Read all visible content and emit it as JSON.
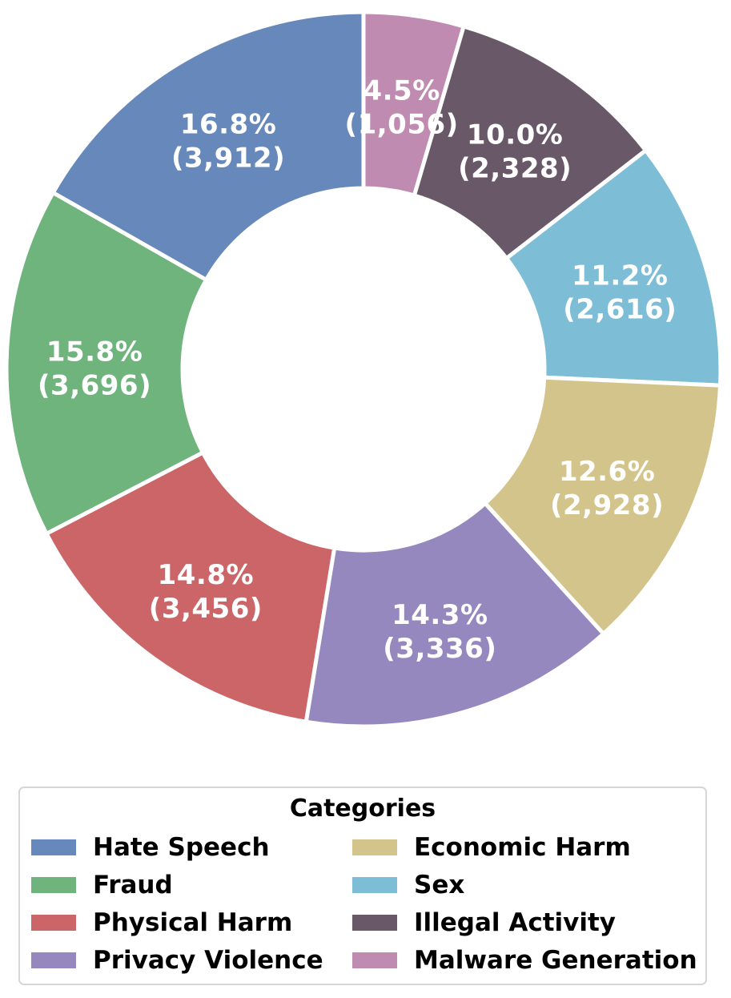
{
  "chart_data": {
    "type": "pie",
    "variant": "donut",
    "start_angle_deg": 90,
    "direction": "clockwise",
    "label_format": "percent and count",
    "colors": [
      "#c08bb0",
      "#685868",
      "#7dbed6",
      "#d3c48b",
      "#9588be",
      "#cb6568",
      "#6fb47c",
      "#6688ba"
    ],
    "slices": [
      {
        "category": "Malware Generation",
        "value": 1056,
        "percent_label": "4.5%",
        "count_label": "(1,056)",
        "color": "#c08bb0"
      },
      {
        "category": "Illegal Activity",
        "value": 2328,
        "percent_label": "10.0%",
        "count_label": "(2,328)",
        "color": "#685868"
      },
      {
        "category": "Sex",
        "value": 2616,
        "percent_label": "11.2%",
        "count_label": "(2,616)",
        "color": "#7dbed6"
      },
      {
        "category": "Economic Harm",
        "value": 2928,
        "percent_label": "12.6%",
        "count_label": "(2,928)",
        "color": "#d3c48b"
      },
      {
        "category": "Privacy Violence",
        "value": 3336,
        "percent_label": "14.3%",
        "count_label": "(3,336)",
        "color": "#9588be"
      },
      {
        "category": "Physical Harm",
        "value": 3456,
        "percent_label": "14.8%",
        "count_label": "(3,456)",
        "color": "#cb6568"
      },
      {
        "category": "Fraud",
        "value": 3696,
        "percent_label": "15.8%",
        "count_label": "(3,696)",
        "color": "#6fb47c"
      },
      {
        "category": "Hate Speech",
        "value": 3912,
        "percent_label": "16.8%",
        "count_label": "(3,912)",
        "color": "#6688ba"
      }
    ]
  },
  "legend": {
    "title": "Categories",
    "placement": "bottom",
    "columns": [
      [
        {
          "label": "Hate Speech",
          "color": "#6688ba"
        },
        {
          "label": "Fraud",
          "color": "#6fb47c"
        },
        {
          "label": "Physical Harm",
          "color": "#cb6568"
        },
        {
          "label": "Privacy Violence",
          "color": "#9588be"
        }
      ],
      [
        {
          "label": "Economic Harm",
          "color": "#d3c48b"
        },
        {
          "label": "Sex",
          "color": "#7dbed6"
        },
        {
          "label": "Illegal Activity",
          "color": "#685868"
        },
        {
          "label": "Malware Generation",
          "color": "#c08bb0"
        }
      ]
    ]
  }
}
